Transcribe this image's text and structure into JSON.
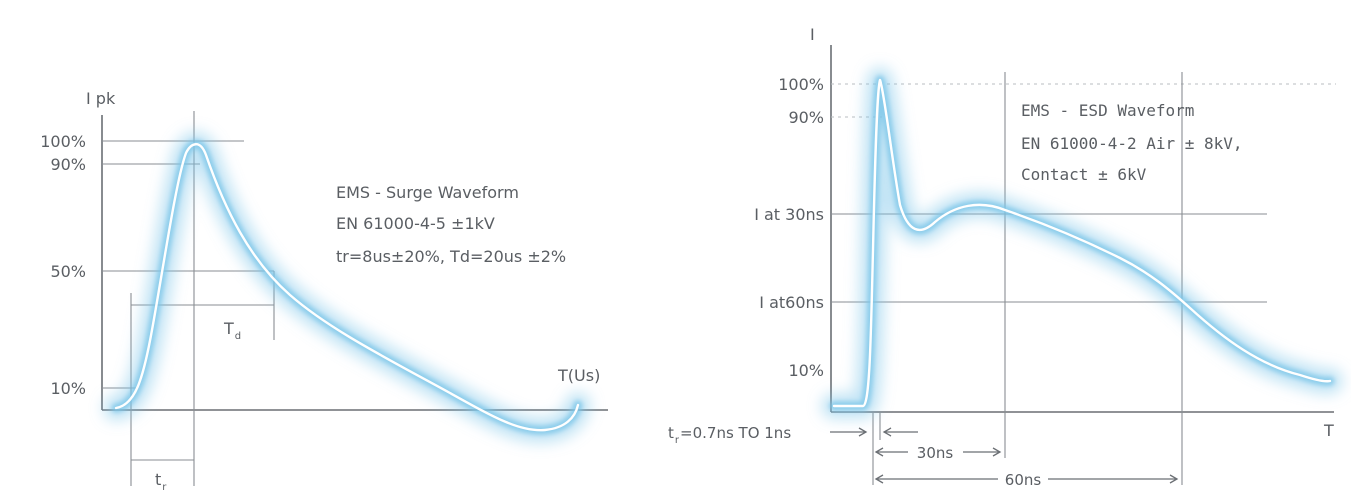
{
  "surge": {
    "y_axis_label": "I pk",
    "x_axis_label": "T(Us)",
    "pct_100": "100%",
    "pct_90": "90%",
    "pct_50": "50%",
    "pct_10": "10%",
    "td_main": "T",
    "td_sub": "d",
    "tr_main": "t",
    "tr_sub": "r",
    "notes": [
      "EMS - Surge Waveform",
      "EN 61000-4-5 ±1kV",
      "tr=8us±20%, Td=20us ±2%"
    ]
  },
  "esd": {
    "y_axis_label": "I",
    "x_axis_label": "T",
    "pct_100": "100%",
    "pct_90": "90%",
    "i_30": "I at 30ns",
    "i_60": "I at60ns",
    "pct_10": "10%",
    "tr_main": "t",
    "tr_sub": "r",
    "tr_rest": "=0.7ns TO 1ns",
    "span_30": "30ns",
    "span_60": "60ns",
    "notes": [
      "EMS - ESD Waveform",
      "EN 61000-4-2 Air ± 8kV,",
      "Contact ± 6kV"
    ]
  },
  "colors": {
    "glow": "#7cc6e8",
    "curve": "#ffffff",
    "text": "#5a5e63",
    "axis": "#6b6f74"
  }
}
